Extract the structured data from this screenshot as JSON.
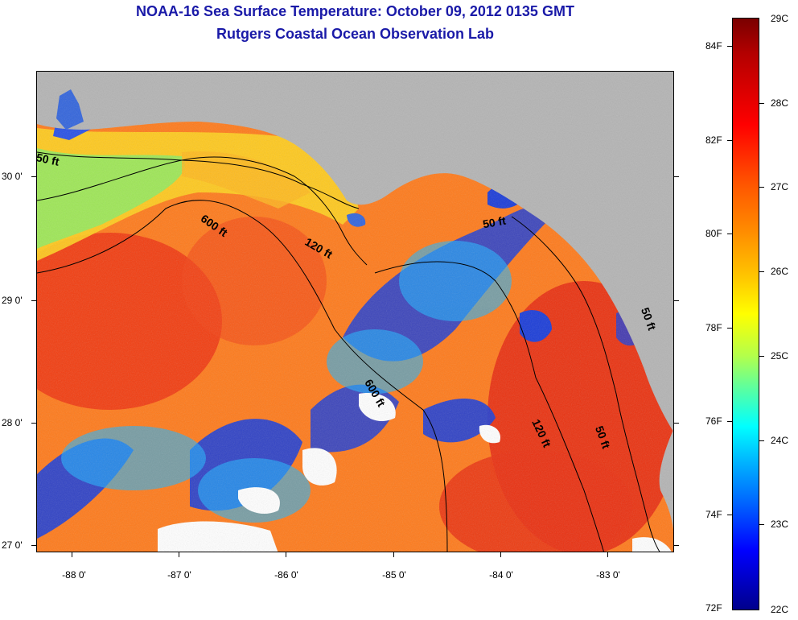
{
  "title": {
    "line1": "NOAA-16 Sea Surface Temperature:  October 09, 2012 0135 GMT",
    "line2": "Rutgers Coastal Ocean Observation Lab"
  },
  "map": {
    "latitude_labels": [
      "30 0'",
      "29 0'",
      "28 0'",
      "27 0'"
    ],
    "longitude_labels": [
      "-88 0'",
      "-87 0'",
      "-86 0'",
      "-85 0'",
      "-84 0'",
      "-83 0'"
    ],
    "contour_labels": [
      "50 ft",
      "600 ft",
      "120 ft",
      "50 ft",
      "600 ft",
      "120 ft",
      "50 ft",
      "50 ft"
    ],
    "land_color": "#b4b4b4",
    "cloud_color": "#ffffff"
  },
  "colorbar": {
    "fahrenheit_labels": [
      "84F",
      "82F",
      "80F",
      "78F",
      "76F",
      "74F",
      "72F"
    ],
    "celsius_labels": [
      "29C",
      "28C",
      "27C",
      "26C",
      "25C",
      "24C",
      "23C",
      "22C"
    ],
    "scale": "jet",
    "min_c": 22,
    "max_c": 29
  }
}
